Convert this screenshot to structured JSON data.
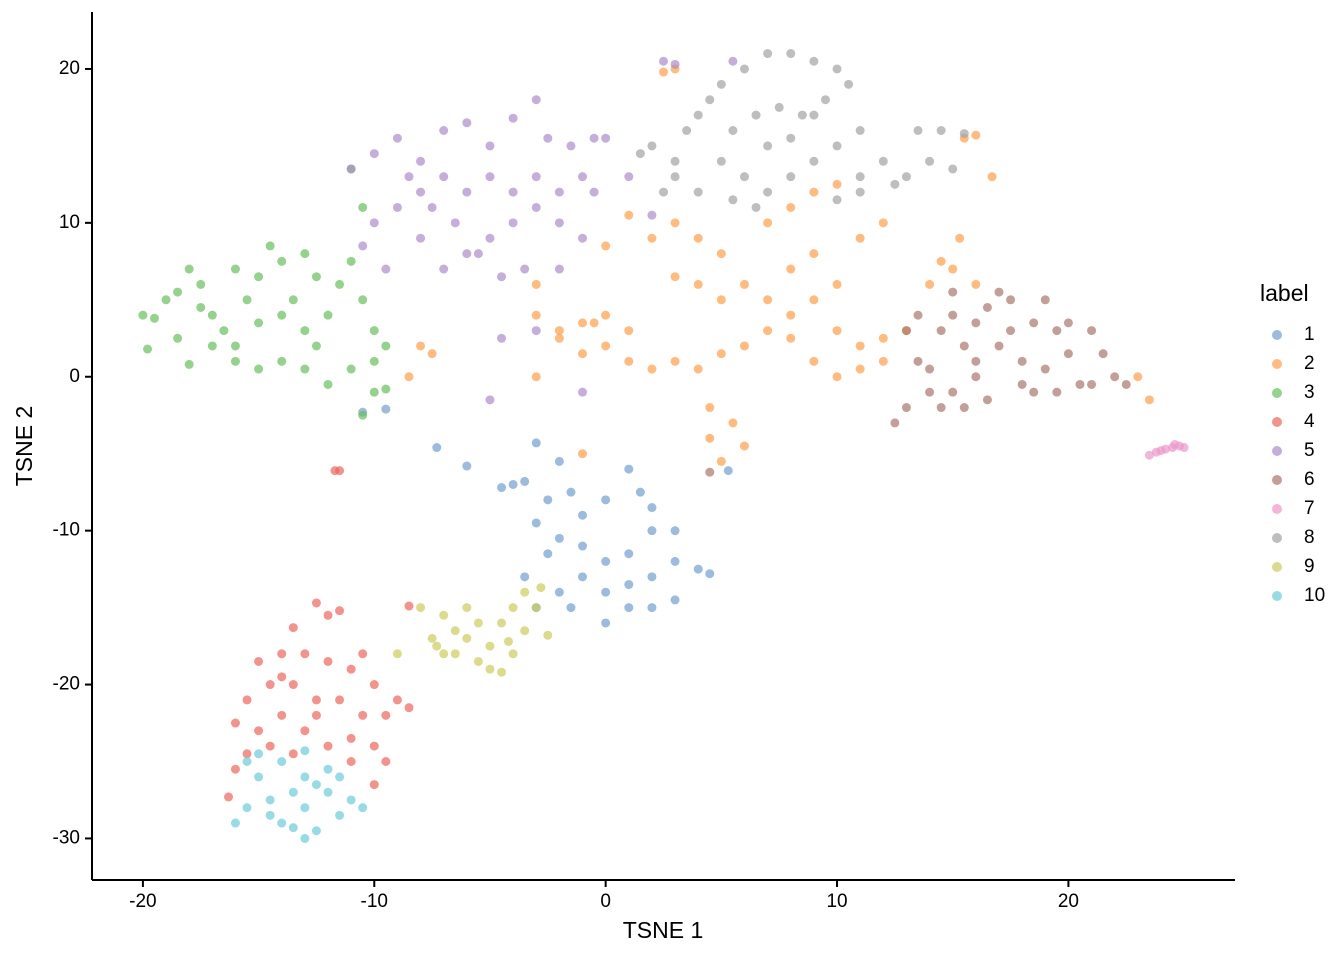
{
  "chart_data": {
    "type": "scatter",
    "xlabel": "TSNE 1",
    "ylabel": "TSNE 2",
    "legend_title": "label",
    "legend": "right",
    "xlim": [
      -22.2,
      27.2
    ],
    "ylim": [
      -32.7,
      23.7
    ],
    "xticks": [
      -20,
      -10,
      0,
      10,
      20
    ],
    "yticks": [
      -30,
      -20,
      -10,
      0,
      10,
      20
    ],
    "series": [
      {
        "name": "1",
        "color": "#729ECE",
        "x": [
          -3,
          -2,
          -4,
          -4.5,
          -3.5,
          -2.5,
          -1.5,
          -3,
          -2,
          -1,
          0,
          1,
          1.5,
          2,
          -1,
          0,
          1,
          2,
          3,
          4,
          4.5,
          3,
          2,
          1,
          0,
          -1,
          -2,
          -3,
          -1.5,
          0,
          1,
          2,
          3,
          -2.5,
          -3.5,
          -7.3,
          -6,
          -9.5,
          -10.5,
          5.3
        ],
        "y": [
          -4.3,
          -5.5,
          -7,
          -7.2,
          -6.8,
          -8,
          -7.5,
          -9.5,
          -10.5,
          -9,
          -8,
          -6,
          -7.5,
          -8.5,
          -11,
          -12,
          -11.5,
          -10,
          -10,
          -12.5,
          -12.8,
          -12,
          -13,
          -13.5,
          -14,
          -13,
          -14,
          -15,
          -15,
          -16,
          -15,
          -15,
          -14.5,
          -11.5,
          -13,
          -4.6,
          -5.8,
          -2.1,
          -2.3,
          -6.1
        ]
      },
      {
        "name": "2",
        "color": "#FF9E4A",
        "x": [
          -8,
          -8.5,
          -7.5,
          -3,
          -3,
          -2,
          -1,
          0,
          1,
          0,
          -1,
          -2,
          -3,
          1,
          2,
          3,
          4,
          5,
          6,
          7,
          8,
          9,
          10,
          11,
          12,
          8,
          9,
          10,
          11,
          12,
          13,
          14,
          14.5,
          15,
          15.3,
          16,
          5,
          6,
          7,
          8,
          9,
          10,
          11,
          12,
          7,
          8,
          9,
          10,
          5,
          4,
          3,
          2,
          1,
          0,
          4,
          3,
          4.5,
          4.5,
          5,
          5.5,
          6,
          -1,
          23,
          23.5,
          3,
          2.5,
          15.5,
          16,
          16.7,
          -0.5
        ],
        "y": [
          2,
          0,
          1.5,
          6,
          4,
          3,
          3.5,
          4,
          3,
          2,
          1.5,
          2.5,
          0,
          1,
          0.5,
          1,
          0.5,
          1.5,
          2,
          3,
          2.5,
          1,
          0,
          0.5,
          1,
          4,
          5,
          3,
          2,
          2.5,
          3,
          6,
          7.5,
          7,
          9,
          6,
          5,
          6,
          5,
          7,
          8,
          6,
          9,
          10,
          10,
          11,
          12,
          12.5,
          8,
          9,
          10,
          9,
          10.5,
          8.5,
          6,
          6.5,
          -2,
          -4,
          -5.5,
          -3,
          -4.5,
          -5,
          0,
          -1.5,
          20,
          19.8,
          15.5,
          15.7,
          13,
          3.5
        ]
      },
      {
        "name": "3",
        "color": "#67BF5C",
        "x": [
          -20,
          -19.5,
          -19.8,
          -19,
          -18.5,
          -18,
          -17.5,
          -17,
          -16.5,
          -16,
          -15.5,
          -15,
          -14.5,
          -14,
          -13.5,
          -13,
          -12.5,
          -12,
          -11.5,
          -11,
          -10.5,
          -10,
          -10,
          -9.5,
          -11,
          -12,
          -13,
          -14,
          -15,
          -16,
          -17,
          -18,
          -17.5,
          -16,
          -14,
          -12.5,
          -11,
          -10.5,
          -10,
          -10.5,
          -9.5,
          -13,
          -15,
          -18.5
        ],
        "y": [
          4,
          3.8,
          1.8,
          5,
          2.5,
          7,
          6,
          4,
          3,
          2,
          5,
          6.5,
          8.5,
          7.5,
          5,
          3,
          2,
          4,
          6,
          7.5,
          5,
          3,
          1,
          2,
          0.5,
          -0.5,
          0.5,
          1,
          0.5,
          1,
          2,
          0.8,
          4.5,
          7,
          4,
          6.5,
          13.5,
          11,
          -1,
          -2.5,
          -0.8,
          8,
          3.5,
          5.5
        ]
      },
      {
        "name": "4",
        "color": "#ED665D",
        "x": [
          -12.5,
          -13.5,
          -12,
          -11.5,
          -14,
          -15,
          -13,
          -12,
          -11,
          -10,
          -9,
          -8.5,
          -9.5,
          -10.5,
          -11.5,
          -12.5,
          -13.5,
          -14.5,
          -15.5,
          -16,
          -15,
          -14,
          -13,
          -12,
          -11,
          -10,
          -9.5,
          -10,
          -14.5,
          -15.5,
          -16,
          -16.3,
          -13.5,
          -12.5,
          -11.5,
          -11.7,
          -8.5,
          -10.5,
          -14,
          -11
        ],
        "y": [
          -14.7,
          -16.3,
          -15.5,
          -15.2,
          -18,
          -18.5,
          -18,
          -18.5,
          -19,
          -20,
          -21,
          -21.5,
          -22,
          -22,
          -21,
          -21,
          -20,
          -20,
          -21,
          -22.5,
          -23,
          -22,
          -23,
          -24,
          -23.5,
          -24,
          -25,
          -26.5,
          -24,
          -24.5,
          -25.5,
          -27.3,
          -24.5,
          -22,
          -6.1,
          -6.1,
          -14.9,
          -18,
          -19.5,
          -25
        ]
      },
      {
        "name": "5",
        "color": "#AD8BC9",
        "x": [
          -11,
          -10,
          -9,
          -8,
          -7,
          -6,
          -5,
          -4,
          -3,
          -2.5,
          -1.5,
          -0.5,
          0,
          -1,
          -2,
          -3,
          -4,
          -5,
          -6,
          -7,
          -8,
          -9,
          -10,
          -10.5,
          -9.5,
          -8,
          -7,
          -6,
          -5,
          -4,
          -3,
          -2,
          -1,
          -2,
          -3.5,
          -4.5,
          -5.5,
          -6.5,
          -7.5,
          -8.5,
          -0.5,
          -3,
          -4.5,
          -5,
          -1,
          1,
          2,
          2.5,
          5.5,
          3
        ],
        "y": [
          13.5,
          14.5,
          15.5,
          14,
          16,
          16.5,
          15,
          16.8,
          18,
          15.5,
          15,
          15.5,
          15.5,
          13,
          12,
          13,
          12,
          13,
          12,
          13,
          12,
          11,
          10,
          8.5,
          7,
          9,
          7,
          8,
          9,
          10,
          11,
          10,
          9,
          7,
          7,
          6.5,
          8,
          10,
          11,
          13,
          12,
          3,
          2.5,
          -1.5,
          -1,
          13,
          10.5,
          20.5,
          20.5,
          20.3
        ]
      },
      {
        "name": "6",
        "color": "#A8786E",
        "x": [
          13,
          13.5,
          14,
          14.5,
          15,
          15.5,
          16,
          16.5,
          17,
          17.5,
          18,
          18.5,
          19,
          19.5,
          20,
          20.5,
          21,
          21.5,
          22,
          22.5,
          12.5,
          13,
          14,
          15,
          16,
          17,
          18,
          19,
          20,
          17.5,
          16.5,
          14.5,
          13.5,
          15.5,
          18.5,
          21,
          19.5,
          4.5,
          15,
          16
        ],
        "y": [
          3,
          1,
          -1,
          -2,
          4,
          2,
          0,
          -1.5,
          5.5,
          3,
          1,
          -1,
          5,
          3,
          1.5,
          -0.5,
          3,
          1.5,
          0,
          -0.5,
          -3,
          -2,
          0.5,
          -1,
          3.5,
          2,
          -0.5,
          0.5,
          3.5,
          5,
          4.5,
          3,
          4,
          -2,
          3.5,
          -0.5,
          -1,
          -6.2,
          5.5,
          1
        ]
      },
      {
        "name": "7",
        "color": "#ED97CA",
        "x": [
          23.5,
          24,
          24.5,
          24.8,
          23.8,
          24.2,
          25,
          24.6
        ],
        "y": [
          -5.1,
          -4.8,
          -4.6,
          -4.5,
          -4.9,
          -4.7,
          -4.6,
          -4.4
        ]
      },
      {
        "name": "8",
        "color": "#A2A2A2",
        "x": [
          1.5,
          2,
          3,
          3.5,
          4,
          4.5,
          5,
          6,
          7,
          8,
          9,
          10,
          10.5,
          9.5,
          8.5,
          7.5,
          6.5,
          5.5,
          5,
          6,
          7,
          8,
          9,
          10,
          11,
          12,
          13,
          14,
          14.5,
          13.5,
          15,
          15.5,
          6.5,
          5.5,
          4,
          3,
          7,
          8,
          9,
          11,
          10,
          11,
          12.5,
          2.5
        ],
        "y": [
          14.5,
          15,
          14,
          16,
          17,
          18,
          19,
          20,
          21,
          21,
          20.5,
          20,
          19,
          18,
          17,
          17.5,
          17,
          16,
          14,
          13,
          12,
          13,
          14,
          15,
          16,
          14,
          13,
          14,
          16,
          16,
          13.5,
          15.8,
          11,
          11.5,
          12,
          13,
          15,
          15.5,
          17,
          13,
          11.5,
          12,
          12.5,
          12
        ]
      },
      {
        "name": "9",
        "color": "#CDCC5D",
        "x": [
          -9,
          -8,
          -7.5,
          -7,
          -7,
          -6.5,
          -6,
          -5.5,
          -5,
          -5,
          -4.5,
          -4,
          -3.5,
          -3,
          -2.8,
          -3.5,
          -4,
          -4.5,
          -5.5,
          -6,
          -6.5,
          -2.5,
          -7.3,
          -4.2
        ],
        "y": [
          -18,
          -15,
          -17,
          -18,
          -15.5,
          -16.5,
          -17,
          -16,
          -17.5,
          -19,
          -19.2,
          -18,
          -16.5,
          -15,
          -13.7,
          -14,
          -15,
          -16,
          -18.5,
          -15,
          -18,
          -16.8,
          -17.5,
          -17.2
        ]
      },
      {
        "name": "10",
        "color": "#6DCCDA",
        "x": [
          -15.5,
          -15,
          -14.5,
          -15.5,
          -16,
          -14,
          -13.5,
          -13,
          -12.5,
          -12,
          -11.5,
          -11,
          -10.5,
          -12,
          -13,
          -14,
          -13,
          -13.5,
          -14.5,
          -12.5,
          -11.5,
          -13,
          -15
        ],
        "y": [
          -25,
          -26,
          -27.5,
          -28,
          -29,
          -29,
          -27,
          -28,
          -29.5,
          -27,
          -26,
          -27.5,
          -28,
          -25.5,
          -26,
          -25,
          -30,
          -29.3,
          -28.5,
          -26.5,
          -28.5,
          -24.3,
          -24.5
        ]
      }
    ]
  }
}
